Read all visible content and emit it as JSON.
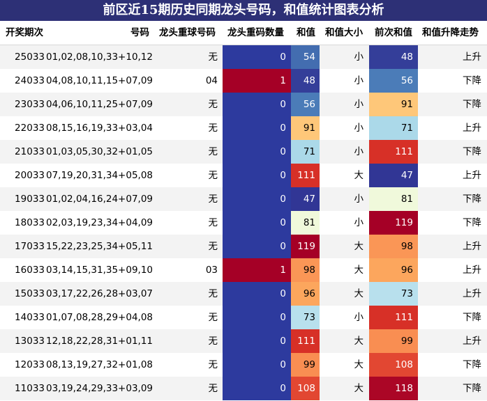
{
  "title": "前区近15期历史同期龙头号码，和值统计图表分析",
  "columns": [
    "开奖期次",
    "号码",
    "龙头重球号码",
    "龙头重码数量",
    "和值",
    "和值大小",
    "前次和值",
    "和值升降走势"
  ],
  "colors": {
    "title_bg": "#2d3076",
    "low": "#2d3a9e",
    "high": "#a50026"
  },
  "chart_data": {
    "type": "table",
    "title": "前区近15期历史同期龙头号码，和值统计图表分析",
    "columns": [
      "开奖期次",
      "号码",
      "龙头重球号码",
      "龙头重码数量",
      "和值",
      "和值大小",
      "前次和值",
      "和值升降走势"
    ],
    "sum_range": [
      47,
      119
    ],
    "rows": [
      {
        "period": "25033",
        "numbers": "01,02,08,10,33+10,12",
        "repeat_ball": "无",
        "repeat_count": 0,
        "sum": 54,
        "size": "小",
        "prev_sum": 48,
        "trend": "上升"
      },
      {
        "period": "24033",
        "numbers": "04,08,10,11,15+07,09",
        "repeat_ball": "04",
        "repeat_count": 1,
        "sum": 48,
        "size": "小",
        "prev_sum": 56,
        "trend": "下降"
      },
      {
        "period": "23033",
        "numbers": "04,06,10,11,25+07,09",
        "repeat_ball": "无",
        "repeat_count": 0,
        "sum": 56,
        "size": "小",
        "prev_sum": 91,
        "trend": "下降"
      },
      {
        "period": "22033",
        "numbers": "08,15,16,19,33+03,04",
        "repeat_ball": "无",
        "repeat_count": 0,
        "sum": 91,
        "size": "小",
        "prev_sum": 71,
        "trend": "上升"
      },
      {
        "period": "21033",
        "numbers": "01,03,05,30,32+01,05",
        "repeat_ball": "无",
        "repeat_count": 0,
        "sum": 71,
        "size": "小",
        "prev_sum": 111,
        "trend": "下降"
      },
      {
        "period": "20033",
        "numbers": "07,19,20,31,34+05,08",
        "repeat_ball": "无",
        "repeat_count": 0,
        "sum": 111,
        "size": "大",
        "prev_sum": 47,
        "trend": "上升"
      },
      {
        "period": "19033",
        "numbers": "01,02,04,16,24+07,09",
        "repeat_ball": "无",
        "repeat_count": 0,
        "sum": 47,
        "size": "小",
        "prev_sum": 81,
        "trend": "下降"
      },
      {
        "period": "18033",
        "numbers": "02,03,19,23,34+04,09",
        "repeat_ball": "无",
        "repeat_count": 0,
        "sum": 81,
        "size": "小",
        "prev_sum": 119,
        "trend": "下降"
      },
      {
        "period": "17033",
        "numbers": "15,22,23,25,34+05,11",
        "repeat_ball": "无",
        "repeat_count": 0,
        "sum": 119,
        "size": "大",
        "prev_sum": 98,
        "trend": "上升"
      },
      {
        "period": "16033",
        "numbers": "03,14,15,31,35+09,10",
        "repeat_ball": "03",
        "repeat_count": 1,
        "sum": 98,
        "size": "大",
        "prev_sum": 96,
        "trend": "上升"
      },
      {
        "period": "15033",
        "numbers": "03,17,22,26,28+03,07",
        "repeat_ball": "无",
        "repeat_count": 0,
        "sum": 96,
        "size": "大",
        "prev_sum": 73,
        "trend": "上升"
      },
      {
        "period": "14033",
        "numbers": "01,07,08,28,29+04,08",
        "repeat_ball": "无",
        "repeat_count": 0,
        "sum": 73,
        "size": "小",
        "prev_sum": 111,
        "trend": "下降"
      },
      {
        "period": "13033",
        "numbers": "12,18,22,28,31+01,11",
        "repeat_ball": "无",
        "repeat_count": 0,
        "sum": 111,
        "size": "大",
        "prev_sum": 99,
        "trend": "上升"
      },
      {
        "period": "12033",
        "numbers": "08,13,19,27,32+01,08",
        "repeat_ball": "无",
        "repeat_count": 0,
        "sum": 99,
        "size": "大",
        "prev_sum": 108,
        "trend": "下降"
      },
      {
        "period": "11033",
        "numbers": "03,19,24,29,33+03,09",
        "repeat_ball": "无",
        "repeat_count": 0,
        "sum": 108,
        "size": "大",
        "prev_sum": 118,
        "trend": "下降"
      }
    ]
  }
}
